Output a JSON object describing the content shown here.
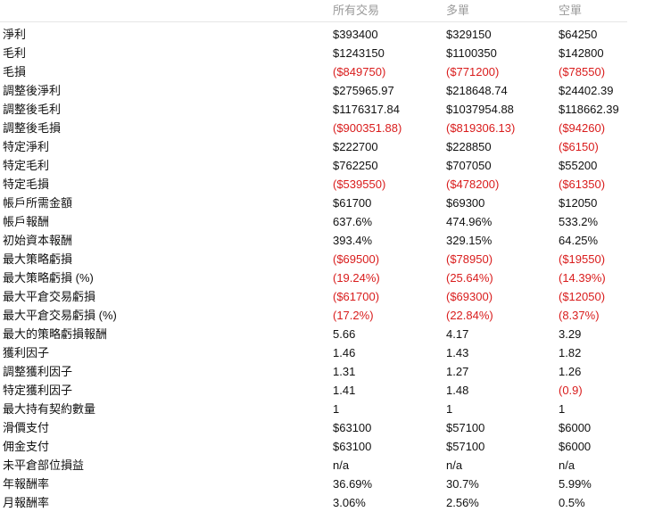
{
  "columns": [
    "所有交易",
    "多單",
    "空單"
  ],
  "negative_color": "#d91c1c",
  "rows": [
    {
      "label": "淨利",
      "v": [
        "$393400",
        "$329150",
        "$64250"
      ]
    },
    {
      "label": "毛利",
      "v": [
        "$1243150",
        "$1100350",
        "$142800"
      ]
    },
    {
      "label": "毛損",
      "v": [
        "($849750)",
        "($771200)",
        "($78550)"
      ]
    },
    {
      "label": "調整後淨利",
      "v": [
        "$275965.97",
        "$218648.74",
        "$24402.39"
      ]
    },
    {
      "label": "調整後毛利",
      "v": [
        "$1176317.84",
        "$1037954.88",
        "$118662.39"
      ]
    },
    {
      "label": "調整後毛損",
      "v": [
        "($900351.88)",
        "($819306.13)",
        "($94260)"
      ]
    },
    {
      "label": "特定淨利",
      "v": [
        "$222700",
        "$228850",
        "($6150)"
      ]
    },
    {
      "label": "特定毛利",
      "v": [
        "$762250",
        "$707050",
        "$55200"
      ]
    },
    {
      "label": "特定毛損",
      "v": [
        "($539550)",
        "($478200)",
        "($61350)"
      ]
    },
    {
      "label": "帳戶所需金額",
      "v": [
        "$61700",
        "$69300",
        "$12050"
      ]
    },
    {
      "label": "帳戶報酬",
      "v": [
        "637.6%",
        "474.96%",
        "533.2%"
      ]
    },
    {
      "label": "初始資本報酬",
      "v": [
        "393.4%",
        "329.15%",
        "64.25%"
      ]
    },
    {
      "label": "最大策略虧損",
      "v": [
        "($69500)",
        "($78950)",
        "($19550)"
      ]
    },
    {
      "label": "最大策略虧損 (%)",
      "v": [
        "(19.24%)",
        "(25.64%)",
        "(14.39%)"
      ]
    },
    {
      "label": "最大平倉交易虧損",
      "v": [
        "($61700)",
        "($69300)",
        "($12050)"
      ]
    },
    {
      "label": "最大平倉交易虧損 (%)",
      "v": [
        "(17.2%)",
        "(22.84%)",
        "(8.37%)"
      ]
    },
    {
      "label": "最大的策略虧損報酬",
      "v": [
        "5.66",
        "4.17",
        "3.29"
      ]
    },
    {
      "label": "獲利因子",
      "v": [
        "1.46",
        "1.43",
        "1.82"
      ]
    },
    {
      "label": "調整獲利因子",
      "v": [
        "1.31",
        "1.27",
        "1.26"
      ]
    },
    {
      "label": "特定獲利因子",
      "v": [
        "1.41",
        "1.48",
        "(0.9)"
      ]
    },
    {
      "label": "最大持有契約數量",
      "v": [
        "1",
        "1",
        "1"
      ]
    },
    {
      "label": "滑價支付",
      "v": [
        "$63100",
        "$57100",
        "$6000"
      ]
    },
    {
      "label": "佣金支付",
      "v": [
        "$63100",
        "$57100",
        "$6000"
      ]
    },
    {
      "label": "未平倉部位損益",
      "v": [
        "n/a",
        "n/a",
        "n/a"
      ]
    },
    {
      "label": "年報酬率",
      "v": [
        "36.69%",
        "30.7%",
        "5.99%"
      ]
    },
    {
      "label": "月報酬率",
      "v": [
        "3.06%",
        "2.56%",
        "0.5%"
      ]
    }
  ]
}
